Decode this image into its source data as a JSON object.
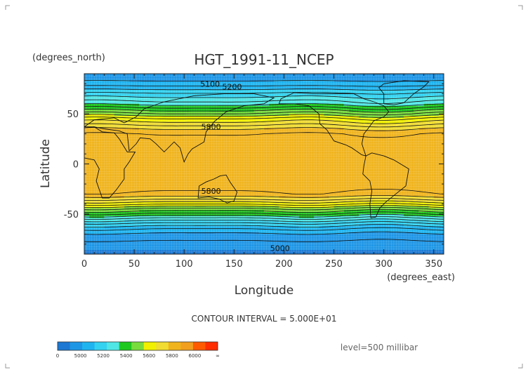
{
  "chart_data": {
    "type": "heatmap",
    "title": "HGT_1991-11_NCEP",
    "xlabel": "Longitude",
    "ylabel": "Latitude",
    "x_units": "(degrees_east)",
    "y_units": "(degrees_north)",
    "xlim": [
      0,
      360
    ],
    "ylim": [
      -90,
      90
    ],
    "x_ticks": [
      0,
      50,
      100,
      150,
      200,
      250,
      300,
      350
    ],
    "y_ticks": [
      -50,
      0,
      50
    ],
    "contour_interval_text": "CONTOUR INTERVAL = 5.000E+01",
    "level_text": "level=500 millibar",
    "contour_labels": [
      {
        "text": "5100",
        "lon": 126,
        "lat": 80
      },
      {
        "text": "5200",
        "lon": 148,
        "lat": 77
      },
      {
        "text": "5800",
        "lon": 127,
        "lat": 37
      },
      {
        "text": "5800",
        "lon": 127,
        "lat": -27
      },
      {
        "text": "5000",
        "lon": 196,
        "lat": -84
      }
    ],
    "color_scale": {
      "tick_labels": [
        "0",
        "5000",
        "5200",
        "5400",
        "5600",
        "5800",
        "6000",
        "∞"
      ],
      "bins": [
        {
          "min": 0,
          "max": 5000,
          "color": "#1c78d2"
        },
        {
          "min": 5000,
          "max": 5100,
          "color": "#1e96e6"
        },
        {
          "min": 5100,
          "max": 5200,
          "color": "#1eb4f0"
        },
        {
          "min": 5200,
          "max": 5300,
          "color": "#32d2f0"
        },
        {
          "min": 5300,
          "max": 5400,
          "color": "#50e6e6"
        },
        {
          "min": 5400,
          "max": 5500,
          "color": "#1ec81e"
        },
        {
          "min": 5500,
          "max": 5600,
          "color": "#78dc3c"
        },
        {
          "min": 5600,
          "max": 5700,
          "color": "#f0f000"
        },
        {
          "min": 5700,
          "max": 5800,
          "color": "#f0dc32"
        },
        {
          "min": 5800,
          "max": 5900,
          "color": "#f0b41e"
        },
        {
          "min": 5900,
          "max": 6000,
          "color": "#f0a01e"
        },
        {
          "min": 6000,
          "max": 6100,
          "color": "#ff5a00"
        },
        {
          "min": 6100,
          "max": 6200,
          "color": "#ff2d00"
        }
      ]
    },
    "zonal_profile": [
      {
        "lat": 90,
        "hgt": 5050
      },
      {
        "lat": 80,
        "hgt": 5120
      },
      {
        "lat": 70,
        "hgt": 5260
      },
      {
        "lat": 60,
        "hgt": 5380
      },
      {
        "lat": 55,
        "hgt": 5470
      },
      {
        "lat": 50,
        "hgt": 5560
      },
      {
        "lat": 45,
        "hgt": 5660
      },
      {
        "lat": 40,
        "hgt": 5730
      },
      {
        "lat": 35,
        "hgt": 5800
      },
      {
        "lat": 30,
        "hgt": 5850
      },
      {
        "lat": 20,
        "hgt": 5880
      },
      {
        "lat": 0,
        "hgt": 5890
      },
      {
        "lat": -20,
        "hgt": 5880
      },
      {
        "lat": -30,
        "hgt": 5840
      },
      {
        "lat": -35,
        "hgt": 5760
      },
      {
        "lat": -40,
        "hgt": 5660
      },
      {
        "lat": -45,
        "hgt": 5540
      },
      {
        "lat": -50,
        "hgt": 5440
      },
      {
        "lat": -55,
        "hgt": 5330
      },
      {
        "lat": -60,
        "hgt": 5230
      },
      {
        "lat": -65,
        "hgt": 5150
      },
      {
        "lat": -70,
        "hgt": 5090
      },
      {
        "lat": -80,
        "hgt": 5030
      },
      {
        "lat": -90,
        "hgt": 4980
      }
    ]
  }
}
